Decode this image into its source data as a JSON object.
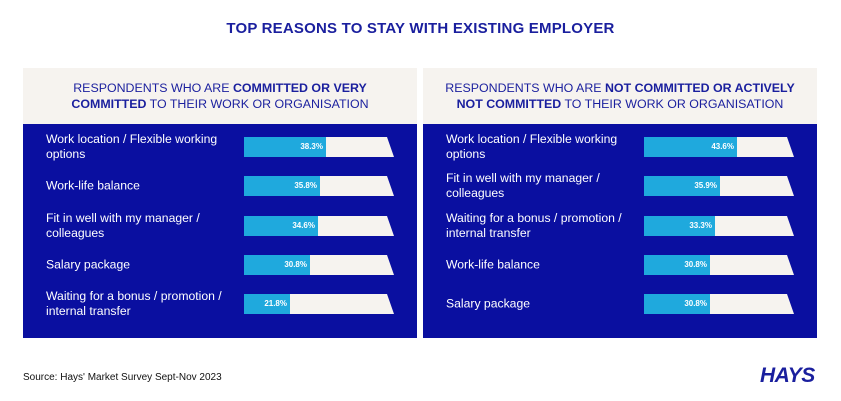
{
  "title": "TOP REASONS TO STAY WITH EXISTING EMPLOYER",
  "source": "Source: Hays' Market Survey Sept-Nov 2023",
  "logo": "HAYS",
  "colors": {
    "navy": "#0a0fa0",
    "bar": "#1fa9dd",
    "track": "#f6f3ef",
    "head_bg": "#f6f3ef",
    "title": "#1a1f9e"
  },
  "panels": [
    {
      "head": {
        "pre": "RESPONDENTS WHO ARE ",
        "bold": "COMMITTED OR VERY COMMITTED",
        "post": " TO THEIR WORK OR ORGANISATION"
      }
    },
    {
      "head": {
        "pre": "RESPONDENTS WHO ARE ",
        "bold": "NOT COMMITTED OR ACTIVELY NOT COMMITTED",
        "post": " TO THEIR WORK OR ORGANISATION"
      }
    }
  ],
  "chart_data": [
    {
      "type": "bar",
      "categories": [
        "Work location / Flexible working options",
        "Work-life balance",
        "Fit in well with my manager / colleagues",
        "Salary package",
        "Waiting for a bonus / promotion / internal transfer"
      ],
      "values": [
        38.3,
        35.8,
        34.6,
        30.8,
        21.8
      ],
      "value_labels": [
        "38.3%",
        "35.8%",
        "34.6%",
        "30.8%",
        "21.8%"
      ],
      "xlim": [
        0,
        100
      ]
    },
    {
      "type": "bar",
      "categories": [
        "Work location / Flexible working options",
        "Fit in well with my manager / colleagues",
        "Waiting for a bonus / promotion / internal transfer",
        "Work-life balance",
        "Salary package"
      ],
      "values": [
        43.6,
        35.9,
        33.3,
        30.8,
        30.8
      ],
      "value_labels": [
        "43.6%",
        "35.9%",
        "33.3%",
        "30.8%",
        "30.8%"
      ],
      "xlim": [
        0,
        100
      ]
    }
  ]
}
